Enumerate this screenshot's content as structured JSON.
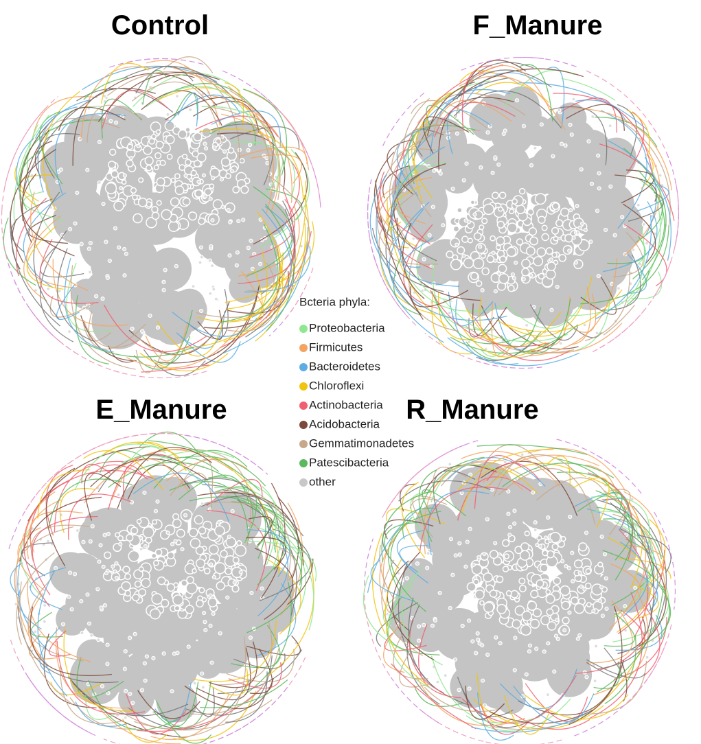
{
  "panels": [
    {
      "title": "Control"
    },
    {
      "title": "F_Manure"
    },
    {
      "title": "E_Manure"
    },
    {
      "title": "R_Manure"
    }
  ],
  "legend": {
    "title": "Bcteria phyla:",
    "items": [
      {
        "label": "Proteobacteria",
        "color": "#8fe88f"
      },
      {
        "label": "Firmicutes",
        "color": "#f4a460"
      },
      {
        "label": "Bacteroidetes",
        "color": "#5dade2"
      },
      {
        "label": "Chloroflexi",
        "color": "#f1c40f"
      },
      {
        "label": "Actinobacteria",
        "color": "#f06070"
      },
      {
        "label": "Acidobacteria",
        "color": "#7b4a3a"
      },
      {
        "label": "Gemmatimonadetes",
        "color": "#c8a88a"
      },
      {
        "label": "Patescibacteria",
        "color": "#5cb85c"
      },
      {
        "label": "other",
        "color": "#c8c8c8"
      }
    ]
  }
}
